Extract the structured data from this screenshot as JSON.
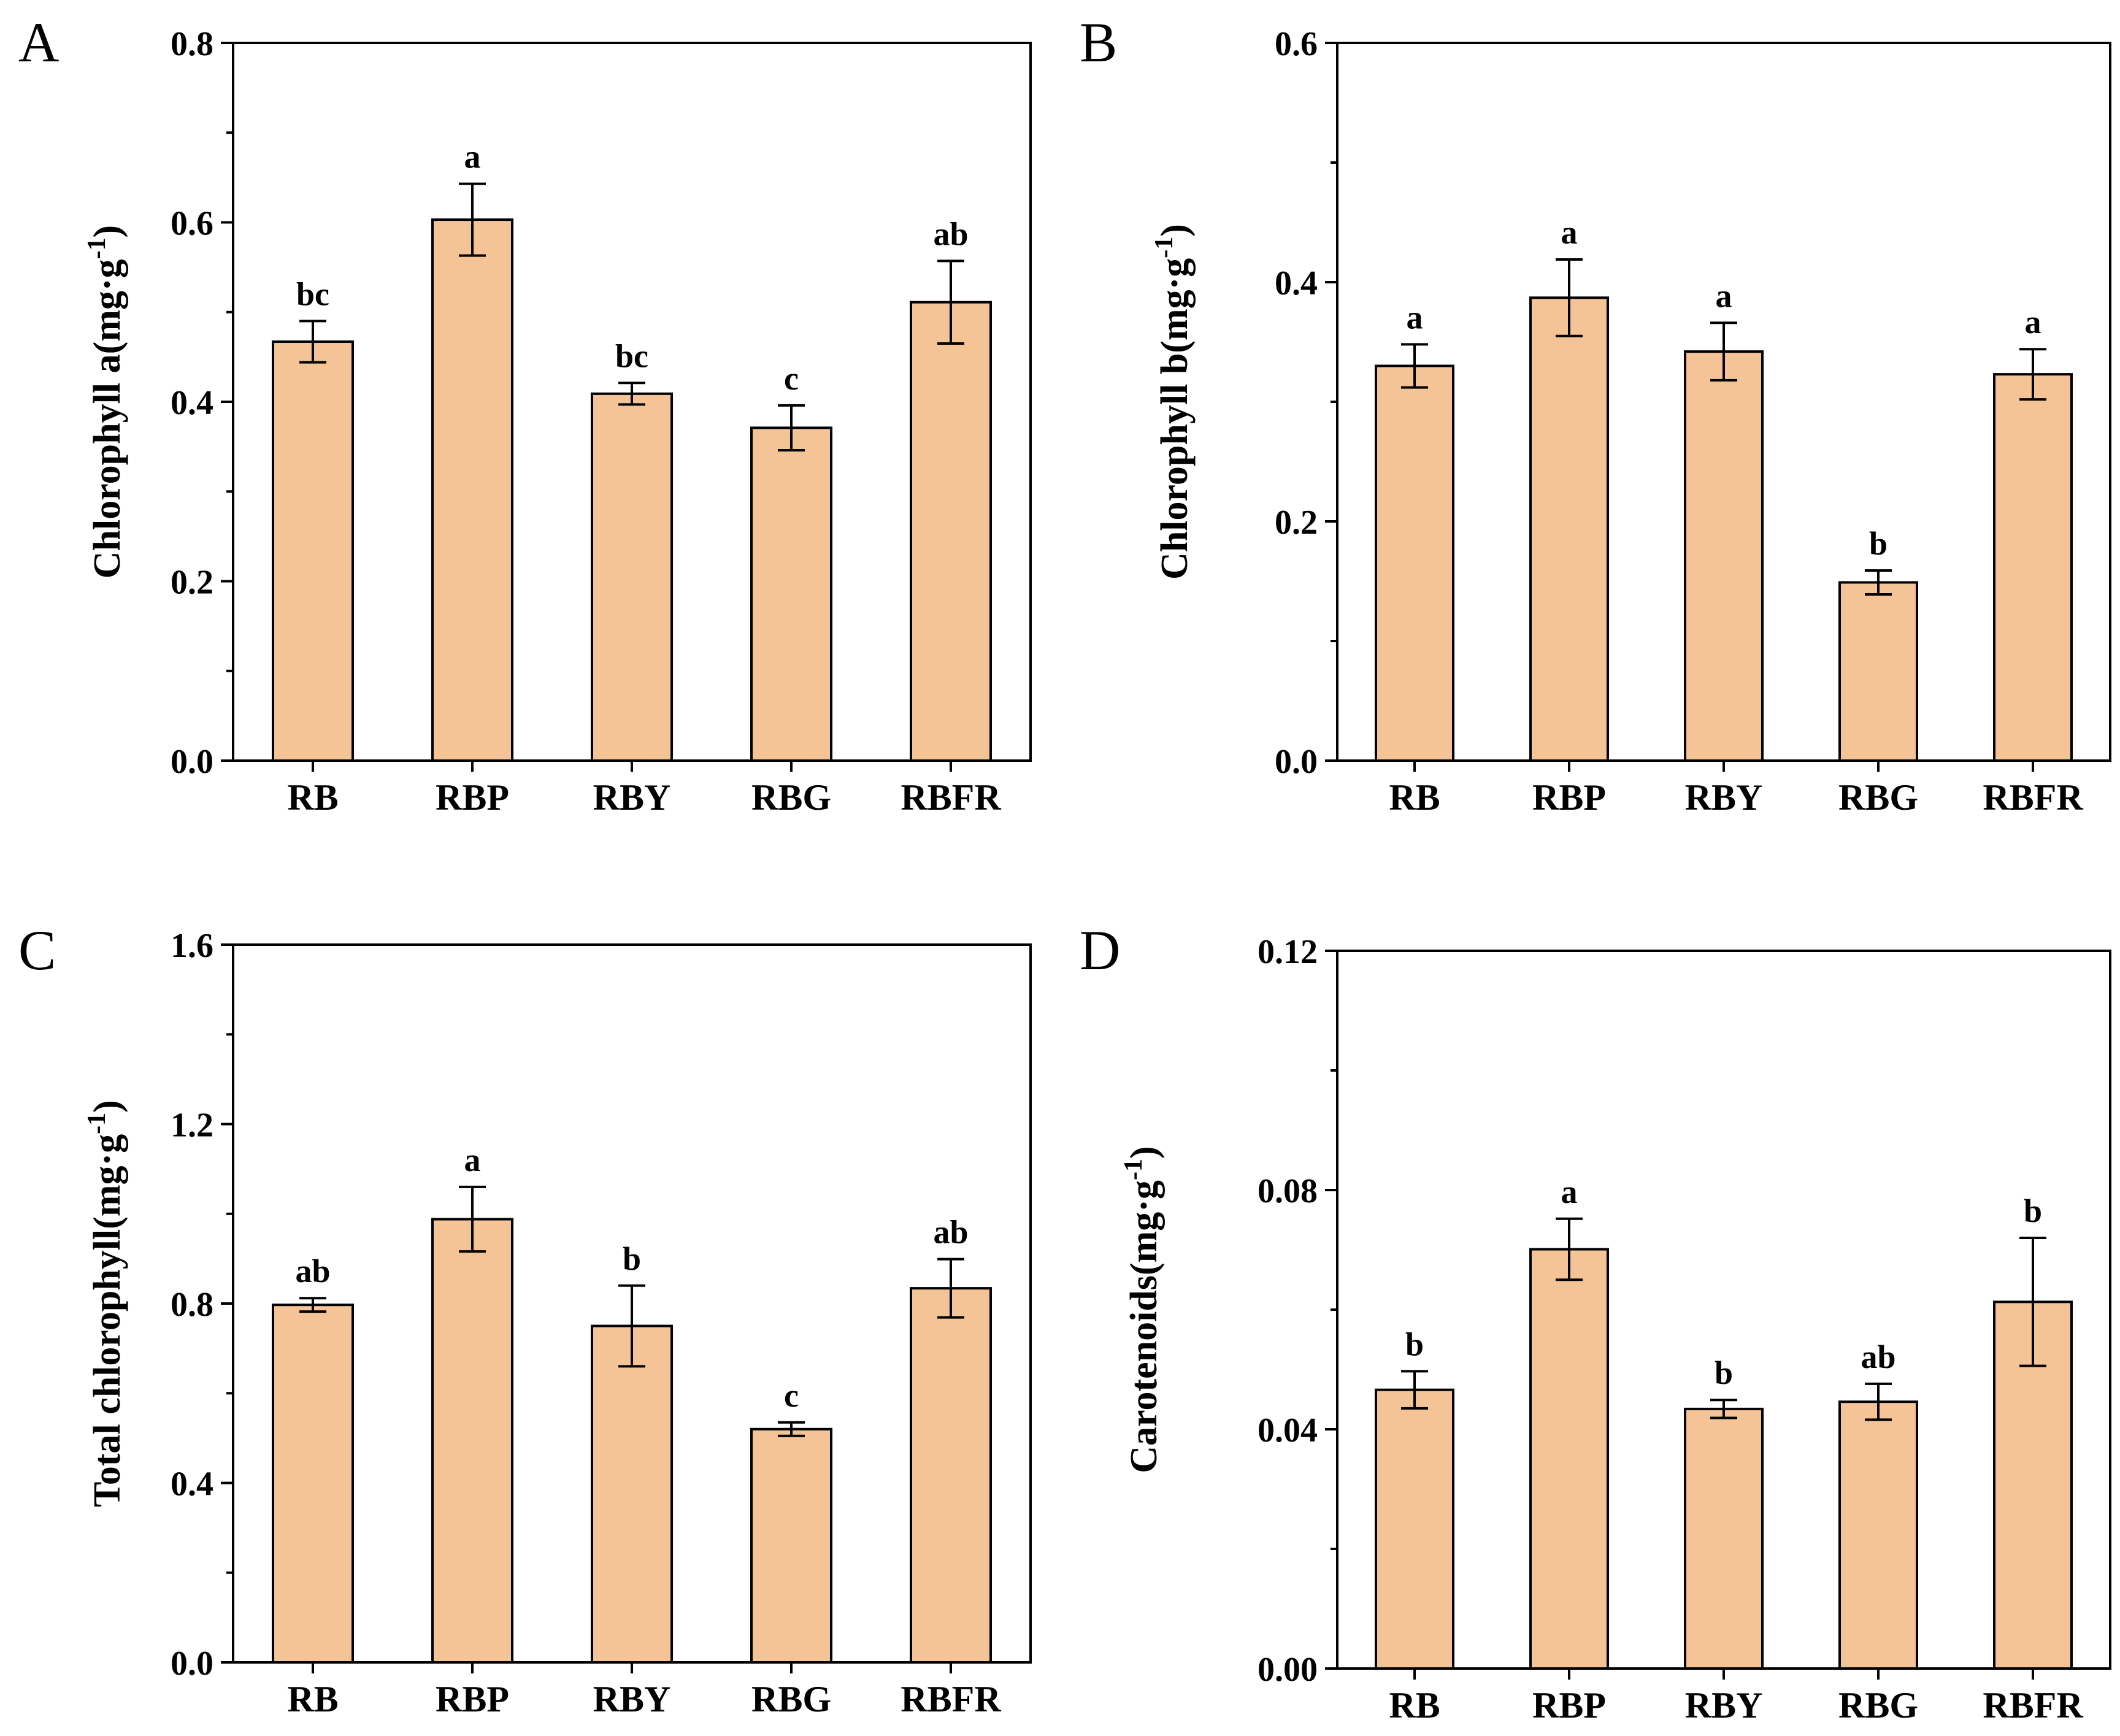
{
  "figure": {
    "bar_fill": "#F5C496",
    "bar_stroke": "#000000"
  },
  "chart_data": [
    {
      "panel": "A",
      "type": "bar",
      "categories": [
        "RB",
        "RBP",
        "RBY",
        "RBG",
        "RBFR"
      ],
      "values": [
        0.467,
        0.603,
        0.409,
        0.371,
        0.511
      ],
      "errors": [
        0.023,
        0.04,
        0.012,
        0.025,
        0.046
      ],
      "significance": [
        "bc",
        "a",
        "bc",
        "c",
        "ab"
      ],
      "ylabel_main": "Chlorophyll a(mg·g",
      "ylabel_sup": "-1",
      "ylabel_end": ")",
      "ylim": [
        0,
        0.8
      ],
      "yticks": [
        0.0,
        0.2,
        0.4,
        0.6,
        0.8
      ],
      "ytick_labels": [
        "0.0",
        "0.2",
        "0.4",
        "0.6",
        "0.8"
      ]
    },
    {
      "panel": "B",
      "type": "bar",
      "categories": [
        "RB",
        "RBP",
        "RBY",
        "RBG",
        "RBFR"
      ],
      "values": [
        0.33,
        0.387,
        0.342,
        0.149,
        0.323
      ],
      "errors": [
        0.018,
        0.032,
        0.024,
        0.01,
        0.021
      ],
      "significance": [
        "a",
        "a",
        "a",
        "b",
        "a"
      ],
      "ylabel_main": "Chlorophyll b(mg·g",
      "ylabel_sup": "-1",
      "ylabel_end": ")",
      "ylim": [
        0,
        0.6
      ],
      "yticks": [
        0.0,
        0.2,
        0.4,
        0.6
      ],
      "ytick_labels": [
        "0.0",
        "0.2",
        "0.4",
        "0.6"
      ]
    },
    {
      "panel": "C",
      "type": "bar",
      "categories": [
        "RB",
        "RBP",
        "RBY",
        "RBG",
        "RBFR"
      ],
      "values": [
        0.797,
        0.988,
        0.75,
        0.52,
        0.834
      ],
      "errors": [
        0.015,
        0.072,
        0.09,
        0.015,
        0.065
      ],
      "significance": [
        "ab",
        "a",
        "b",
        "c",
        "ab"
      ],
      "ylabel_main": "Total chlorophyll(mg·g",
      "ylabel_sup": "-1",
      "ylabel_end": ")",
      "ylim": [
        0,
        1.6
      ],
      "yticks": [
        0.0,
        0.4,
        0.8,
        1.2,
        1.6
      ],
      "ytick_labels": [
        "0.0",
        "0.4",
        "0.8",
        "1.2",
        "1.6"
      ]
    },
    {
      "panel": "D",
      "type": "bar",
      "categories": [
        "RB",
        "RBP",
        "RBY",
        "RBG",
        "RBFR"
      ],
      "values": [
        0.0466,
        0.0701,
        0.0434,
        0.0446,
        0.0613
      ],
      "errors": [
        0.0031,
        0.0051,
        0.0015,
        0.003,
        0.0107
      ],
      "significance": [
        "b",
        "a",
        "b",
        "ab",
        "b"
      ],
      "ylabel_main": "Carotenoids(mg·g",
      "ylabel_sup": "-1",
      "ylabel_end": ")",
      "ylim": [
        0,
        0.12
      ],
      "yticks": [
        0.0,
        0.04,
        0.08,
        0.12
      ],
      "ytick_labels": [
        "0.00",
        "0.04",
        "0.08",
        "0.12"
      ]
    }
  ]
}
